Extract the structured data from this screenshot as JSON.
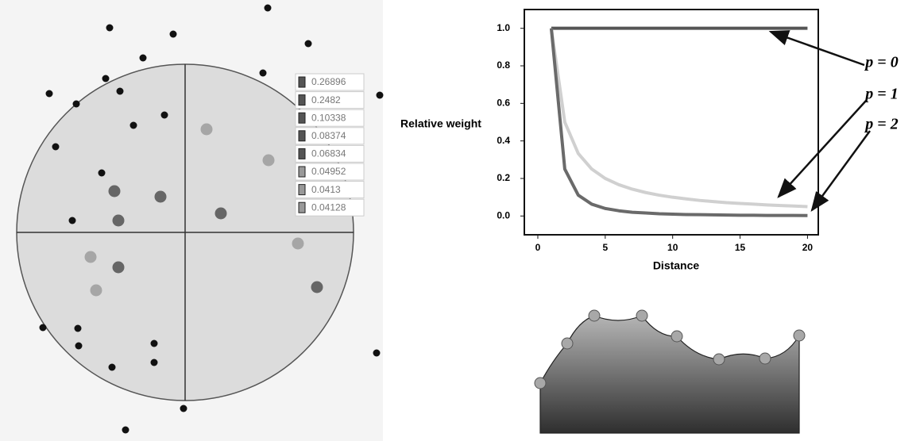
{
  "weights_legend": {
    "labels": [
      0.26896,
      0.2482,
      0.10338,
      0.08374,
      0.06834,
      0.04952,
      0.0413,
      0.04128
    ]
  },
  "chart_data": {
    "type": "line",
    "xlabel": "Distance",
    "ylabel": "Relative weight",
    "x": [
      1,
      2,
      3,
      4,
      5,
      6,
      7,
      8,
      9,
      10,
      11,
      12,
      13,
      14,
      15,
      16,
      17,
      18,
      19,
      20
    ],
    "series": [
      {
        "name": "p = 0",
        "color": "#555555",
        "values": [
          1,
          1,
          1,
          1,
          1,
          1,
          1,
          1,
          1,
          1,
          1,
          1,
          1,
          1,
          1,
          1,
          1,
          1,
          1,
          1
        ]
      },
      {
        "name": "p = 1",
        "color": "#d0d0d0",
        "values": [
          1,
          0.5,
          0.333,
          0.25,
          0.2,
          0.167,
          0.143,
          0.125,
          0.111,
          0.1,
          0.091,
          0.083,
          0.077,
          0.071,
          0.067,
          0.063,
          0.059,
          0.056,
          0.053,
          0.05
        ]
      },
      {
        "name": "p = 2",
        "color": "#6a6a6a",
        "values": [
          1,
          0.25,
          0.111,
          0.063,
          0.04,
          0.028,
          0.02,
          0.016,
          0.012,
          0.01,
          0.008,
          0.007,
          0.006,
          0.005,
          0.004,
          0.004,
          0.003,
          0.003,
          0.003,
          0.0025
        ]
      }
    ],
    "xlim": [
      -1,
      20.8
    ],
    "ylim": [
      -0.1,
      1.1
    ],
    "xticks": [
      0,
      5,
      10,
      15,
      20
    ],
    "yticks": [
      {
        "value": 0,
        "label": "0.0"
      },
      0.2,
      0.4,
      0.6,
      0.8,
      {
        "value": 1,
        "label": "1.0"
      }
    ]
  }
}
